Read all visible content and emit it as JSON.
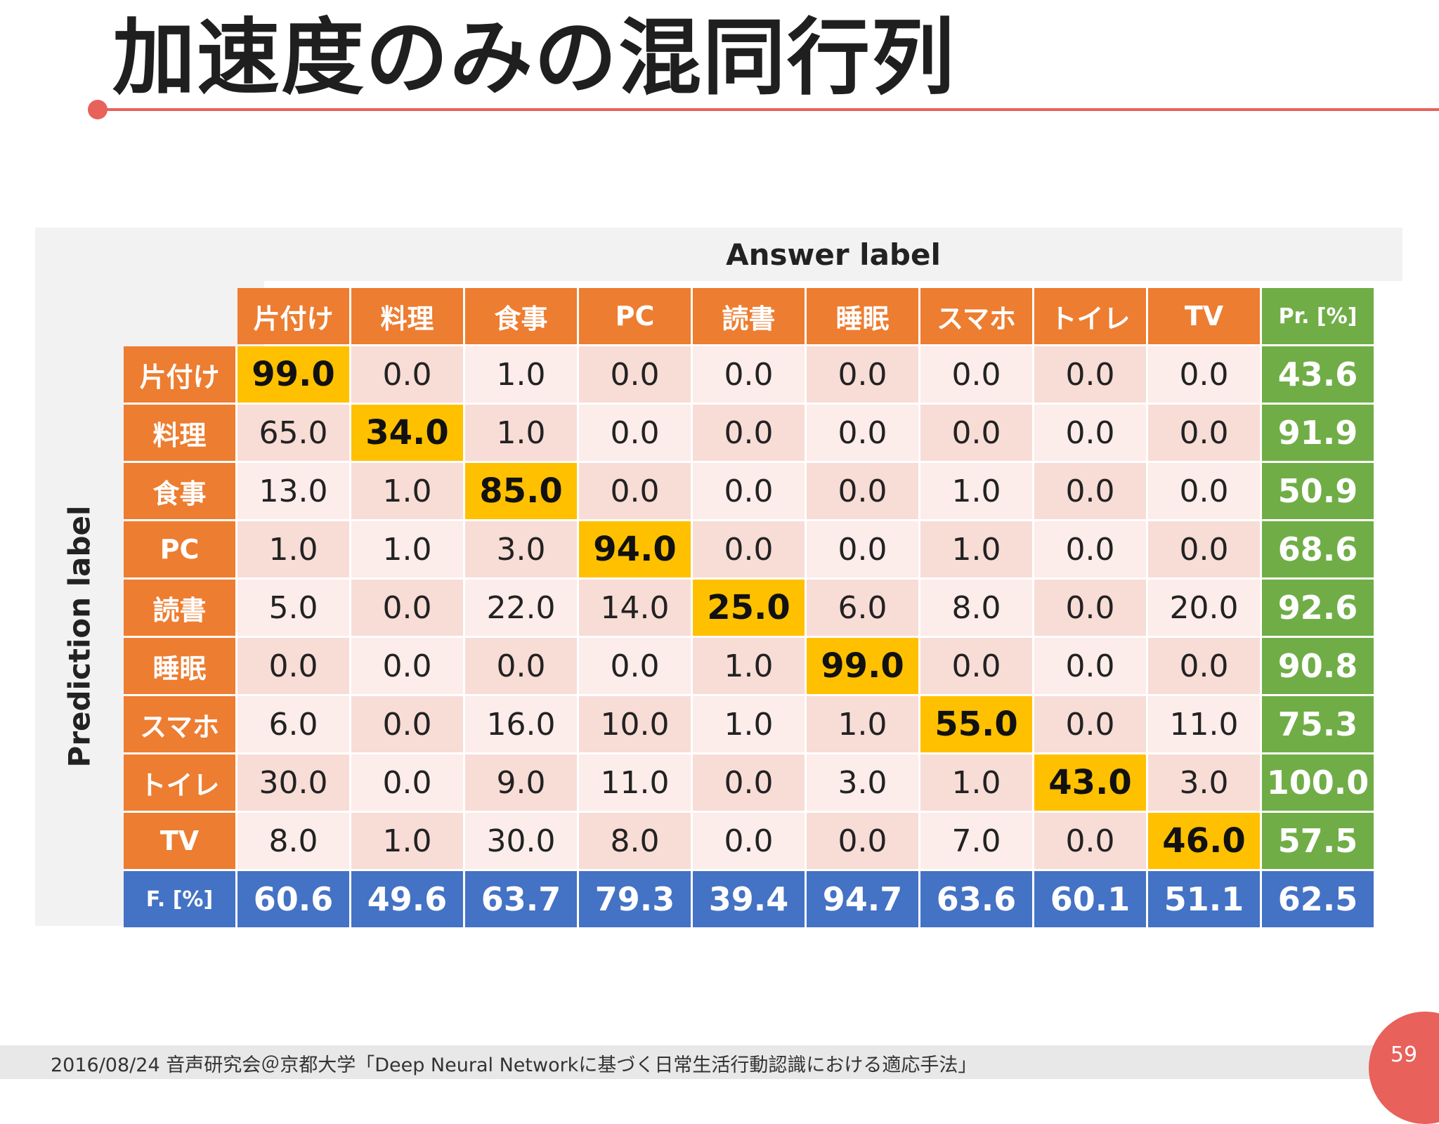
{
  "slide": {
    "title": "加速度のみの混同行列",
    "footer": "2016/08/24 音声研究会＠京都大学「Deep Neural Networkに基づく日常生活行動認識における適応手法」",
    "page_number": "59"
  },
  "colors": {
    "accent": "#e8615a",
    "header_orange": "#ed7d31",
    "precision_green": "#70ad47",
    "fscore_blue": "#4472c4",
    "diagonal_gold": "#ffc000",
    "cell_light": "#fcecea",
    "cell_dark": "#f8dcd6"
  },
  "chart_data": {
    "type": "table",
    "title": "加速度のみの混同行列",
    "column_axis_label": "Answer label",
    "row_axis_label": "Prediction label",
    "columns": [
      "片付け",
      "料理",
      "食事",
      "PC",
      "読書",
      "睡眠",
      "スマホ",
      "トイレ",
      "TV",
      "Pr. [%]"
    ],
    "rows": [
      {
        "label": "片付け",
        "values": [
          "99.0",
          "0.0",
          "1.0",
          "0.0",
          "0.0",
          "0.0",
          "0.0",
          "0.0",
          "0.0"
        ],
        "precision": "43.6"
      },
      {
        "label": "料理",
        "values": [
          "65.0",
          "34.0",
          "1.0",
          "0.0",
          "0.0",
          "0.0",
          "0.0",
          "0.0",
          "0.0"
        ],
        "precision": "91.9"
      },
      {
        "label": "食事",
        "values": [
          "13.0",
          "1.0",
          "85.0",
          "0.0",
          "0.0",
          "0.0",
          "1.0",
          "0.0",
          "0.0"
        ],
        "precision": "50.9"
      },
      {
        "label": "PC",
        "values": [
          "1.0",
          "1.0",
          "3.0",
          "94.0",
          "0.0",
          "0.0",
          "1.0",
          "0.0",
          "0.0"
        ],
        "precision": "68.6"
      },
      {
        "label": "読書",
        "values": [
          "5.0",
          "0.0",
          "22.0",
          "14.0",
          "25.0",
          "6.0",
          "8.0",
          "0.0",
          "20.0"
        ],
        "precision": "92.6"
      },
      {
        "label": "睡眠",
        "values": [
          "0.0",
          "0.0",
          "0.0",
          "0.0",
          "1.0",
          "99.0",
          "0.0",
          "0.0",
          "0.0"
        ],
        "precision": "90.8"
      },
      {
        "label": "スマホ",
        "values": [
          "6.0",
          "0.0",
          "16.0",
          "10.0",
          "1.0",
          "1.0",
          "55.0",
          "0.0",
          "11.0"
        ],
        "precision": "75.3"
      },
      {
        "label": "トイレ",
        "values": [
          "30.0",
          "0.0",
          "9.0",
          "11.0",
          "0.0",
          "3.0",
          "1.0",
          "43.0",
          "3.0"
        ],
        "precision": "100.0"
      },
      {
        "label": "TV",
        "values": [
          "8.0",
          "1.0",
          "30.0",
          "8.0",
          "0.0",
          "0.0",
          "7.0",
          "0.0",
          "46.0"
        ],
        "precision": "57.5"
      }
    ],
    "fscore_row": {
      "label": "F. [%]",
      "values": [
        "60.6",
        "49.6",
        "63.7",
        "79.3",
        "39.4",
        "94.7",
        "63.6",
        "60.1",
        "51.1"
      ],
      "overall": "62.5"
    }
  }
}
